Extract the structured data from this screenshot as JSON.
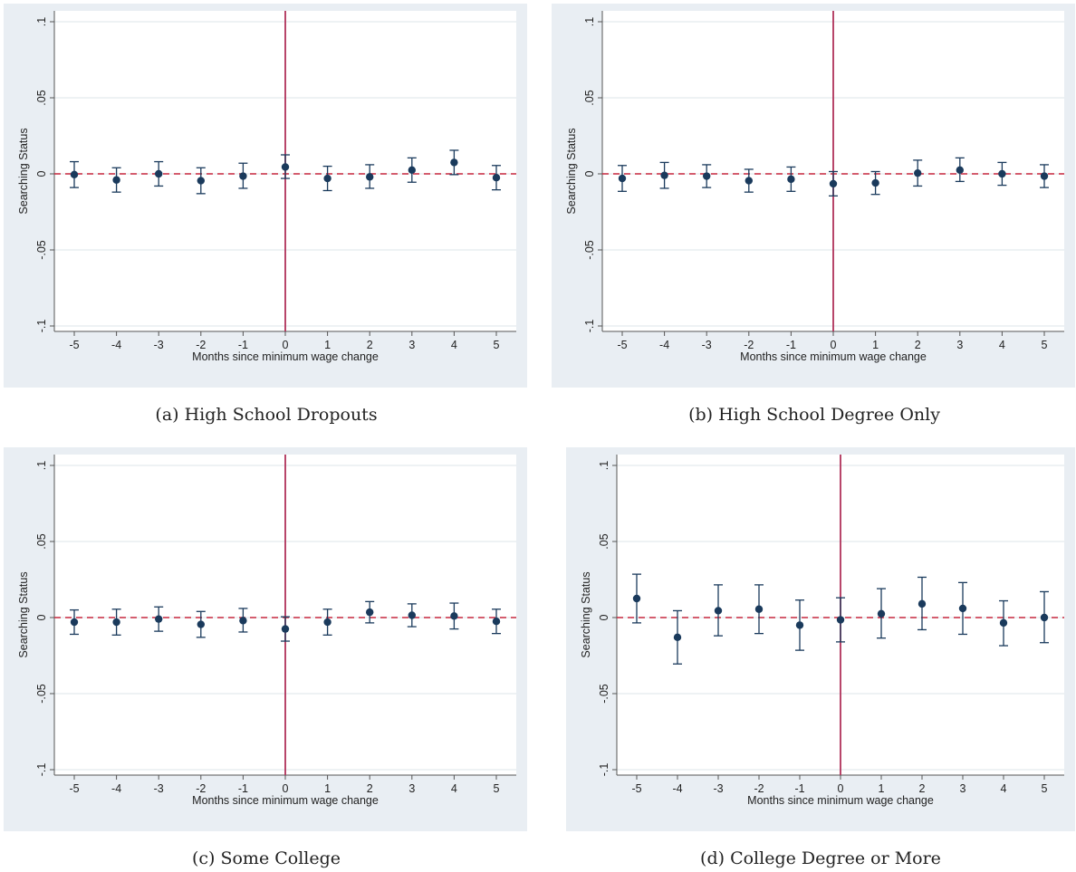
{
  "chart_data": [
    {
      "type": "scatter",
      "caption": "(a) High School Dropouts",
      "xlabel": "Months since minimum wage change",
      "ylabel": "Searching Status",
      "x": [
        -5,
        -4,
        -3,
        -2,
        -1,
        0,
        1,
        2,
        3,
        4,
        5
      ],
      "x_tick_labels": [
        "-5",
        "-4",
        "-3",
        "-2",
        "-1",
        "0",
        "1",
        "2",
        "3",
        "4",
        "5"
      ],
      "y_ticks": [
        -0.1,
        -0.05,
        0,
        0.05,
        0.1
      ],
      "y_tick_labels": [
        "-.1",
        "-.05",
        "0",
        ".05",
        ".1"
      ],
      "ylim": [
        -0.1,
        0.1
      ],
      "estimate": [
        -0.0005,
        -0.004,
        0.0,
        -0.0045,
        -0.0015,
        0.0045,
        -0.003,
        -0.002,
        0.0025,
        0.0075,
        -0.0025
      ],
      "ci_low": [
        -0.009,
        -0.012,
        -0.008,
        -0.013,
        -0.0095,
        -0.003,
        -0.011,
        -0.0095,
        -0.0055,
        -0.0005,
        -0.0105
      ],
      "ci_high": [
        0.008,
        0.004,
        0.008,
        0.004,
        0.007,
        0.0125,
        0.005,
        0.006,
        0.0105,
        0.0155,
        0.0055
      ],
      "vline_x": 0,
      "hline_y": 0,
      "grid": true
    },
    {
      "type": "scatter",
      "caption": "(b) High School Degree Only",
      "xlabel": "Months since minimum wage change",
      "ylabel": "Searching Status",
      "x": [
        -5,
        -4,
        -3,
        -2,
        -1,
        0,
        1,
        2,
        3,
        4,
        5
      ],
      "x_tick_labels": [
        "-5",
        "-4",
        "-3",
        "-2",
        "-1",
        "0",
        "1",
        "2",
        "3",
        "4",
        "5"
      ],
      "y_ticks": [
        -0.1,
        -0.05,
        0,
        0.05,
        0.1
      ],
      "y_tick_labels": [
        "-.1",
        "-.05",
        "0",
        ".05",
        ".1"
      ],
      "ylim": [
        -0.1,
        0.1
      ],
      "estimate": [
        -0.003,
        -0.001,
        -0.0015,
        -0.0045,
        -0.0035,
        -0.0065,
        -0.006,
        0.0005,
        0.0025,
        0.0,
        -0.0015
      ],
      "ci_low": [
        -0.0115,
        -0.0095,
        -0.009,
        -0.012,
        -0.0115,
        -0.0145,
        -0.0135,
        -0.008,
        -0.005,
        -0.0075,
        -0.009
      ],
      "ci_high": [
        0.0055,
        0.0075,
        0.006,
        0.003,
        0.0045,
        0.0015,
        0.0015,
        0.009,
        0.0105,
        0.0075,
        0.006
      ],
      "vline_x": 0,
      "hline_y": 0,
      "grid": true
    },
    {
      "type": "scatter",
      "caption": "(c) Some College",
      "xlabel": "Months since minimum wage change",
      "ylabel": "Searching Status",
      "x": [
        -5,
        -4,
        -3,
        -2,
        -1,
        0,
        1,
        2,
        3,
        4,
        5
      ],
      "x_tick_labels": [
        "-5",
        "-4",
        "-3",
        "-2",
        "-1",
        "0",
        "1",
        "2",
        "3",
        "4",
        "5"
      ],
      "y_ticks": [
        -0.1,
        -0.05,
        0,
        0.05,
        0.1
      ],
      "y_tick_labels": [
        "-.1",
        "-.05",
        "0",
        ".05",
        ".1"
      ],
      "ylim": [
        -0.1,
        0.1
      ],
      "estimate": [
        -0.003,
        -0.003,
        -0.001,
        -0.0045,
        -0.002,
        -0.0075,
        -0.003,
        0.0035,
        0.0015,
        0.001,
        -0.0025
      ],
      "ci_low": [
        -0.011,
        -0.0115,
        -0.009,
        -0.013,
        -0.0095,
        -0.0155,
        -0.0115,
        -0.0035,
        -0.006,
        -0.0075,
        -0.0105
      ],
      "ci_high": [
        0.005,
        0.0055,
        0.007,
        0.004,
        0.006,
        0.0005,
        0.0055,
        0.0105,
        0.009,
        0.0095,
        0.0055
      ],
      "vline_x": 0,
      "hline_y": 0,
      "grid": true
    },
    {
      "type": "scatter",
      "caption": "(d) College Degree or More",
      "xlabel": "Months since minimum wage change",
      "ylabel": "Searching Status",
      "x": [
        -5,
        -4,
        -3,
        -2,
        -1,
        0,
        1,
        2,
        3,
        4,
        5
      ],
      "x_tick_labels": [
        "-5",
        "-4",
        "-3",
        "-2",
        "-1",
        "0",
        "1",
        "2",
        "3",
        "4",
        "5"
      ],
      "y_ticks": [
        -0.1,
        -0.05,
        0,
        0.05,
        0.1
      ],
      "y_tick_labels": [
        "-.1",
        "-.05",
        "0",
        ".05",
        ".1"
      ],
      "ylim": [
        -0.1,
        0.1
      ],
      "estimate": [
        0.0125,
        -0.013,
        0.0045,
        0.0055,
        -0.005,
        -0.0015,
        0.0025,
        0.009,
        0.006,
        -0.0035,
        0.0
      ],
      "ci_low": [
        -0.0035,
        -0.0305,
        -0.012,
        -0.0105,
        -0.0215,
        -0.016,
        -0.0135,
        -0.008,
        -0.011,
        -0.0185,
        -0.0165
      ],
      "ci_high": [
        0.0285,
        0.0045,
        0.0215,
        0.0215,
        0.0115,
        0.013,
        0.019,
        0.0265,
        0.023,
        0.011,
        0.017
      ],
      "vline_x": 0,
      "hline_y": 0,
      "grid": true
    }
  ],
  "colors": {
    "outer_bg": "#e9eef3",
    "plot_bg": "#ffffff",
    "grid": "#e3e9ee",
    "axis": "#555555",
    "point": "#1a3a5c",
    "ci": "#1a3a5c",
    "vline": "#b0325a",
    "hline": "#c8293f"
  }
}
